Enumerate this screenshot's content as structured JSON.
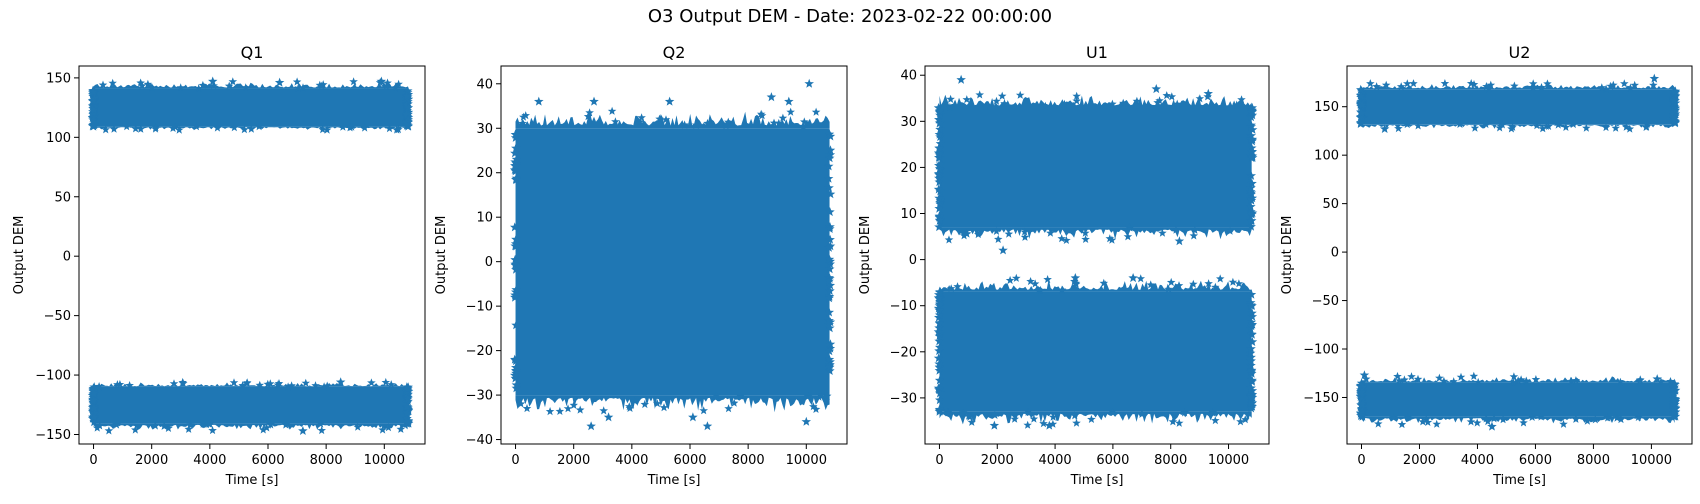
{
  "figure": {
    "title": "O3 Output DEM - Date: 2023-02-22 00:00:00"
  },
  "colors": {
    "series": "#1f77b4",
    "axis": "#000000"
  },
  "chart_data": [
    {
      "type": "scatter",
      "marker": "star",
      "title": "Q1",
      "xlabel": "Time [s]",
      "ylabel": "Output DEM",
      "xlim": [
        -500,
        11400
      ],
      "ylim": [
        -158,
        160
      ],
      "xticks": [
        0,
        2000,
        4000,
        6000,
        8000,
        10000
      ],
      "yticks": [
        -150,
        -100,
        -50,
        0,
        50,
        100,
        150
      ],
      "x_range": [
        0,
        10800
      ],
      "bands": [
        {
          "center": 125,
          "low": 109,
          "high": 141,
          "outlier_low": 106,
          "outlier_high": 147
        },
        {
          "center": -125,
          "low": -141,
          "high": -110,
          "outlier_low": -147,
          "outlier_high": -106
        }
      ],
      "outliers": [
        [
          4100,
          147
        ],
        [
          6400,
          146
        ],
        [
          9900,
          147
        ],
        [
          8500,
          -106
        ],
        [
          7200,
          -147
        ]
      ]
    },
    {
      "type": "scatter",
      "marker": "star",
      "title": "Q2",
      "xlabel": "Time [s]",
      "ylabel": "Output DEM",
      "xlim": [
        -500,
        11400
      ],
      "ylim": [
        -41,
        44
      ],
      "xticks": [
        0,
        2000,
        4000,
        6000,
        8000,
        10000
      ],
      "yticks": [
        -40,
        -30,
        -20,
        -10,
        0,
        10,
        20,
        30,
        40
      ],
      "x_range": [
        0,
        10800
      ],
      "bands": [
        {
          "center": 0,
          "low": -30,
          "high": 30,
          "outlier_low": -34,
          "outlier_high": 34
        }
      ],
      "outliers": [
        [
          10100,
          40
        ],
        [
          8800,
          37
        ],
        [
          2700,
          36
        ],
        [
          5300,
          36
        ],
        [
          6600,
          -37
        ],
        [
          2600,
          -37
        ],
        [
          3200,
          -35
        ],
        [
          10000,
          -36
        ],
        [
          6100,
          -35
        ],
        [
          9400,
          36
        ],
        [
          800,
          36
        ]
      ]
    },
    {
      "type": "scatter",
      "marker": "star",
      "title": "U1",
      "xlabel": "Time [s]",
      "ylabel": "Output DEM",
      "xlim": [
        -500,
        11400
      ],
      "ylim": [
        -40,
        42
      ],
      "xticks": [
        0,
        2000,
        4000,
        6000,
        8000,
        10000
      ],
      "yticks": [
        -30,
        -20,
        -10,
        0,
        10,
        20,
        30,
        40
      ],
      "x_range": [
        0,
        10800
      ],
      "bands": [
        {
          "center": 19.5,
          "low": 7,
          "high": 33,
          "outlier_low": 4,
          "outlier_high": 36
        },
        {
          "center": -19.5,
          "low": -33,
          "high": -7,
          "outlier_low": -36,
          "outlier_high": -4
        }
      ],
      "outliers": [
        [
          750,
          39
        ],
        [
          2200,
          2
        ],
        [
          7500,
          37
        ],
        [
          8300,
          4
        ],
        [
          9300,
          36
        ],
        [
          4700,
          -4
        ],
        [
          6700,
          -4
        ],
        [
          1900,
          -36
        ],
        [
          3800,
          -36
        ]
      ]
    },
    {
      "type": "scatter",
      "marker": "star",
      "title": "U2",
      "xlabel": "Time [s]",
      "ylabel": "Output DEM",
      "xlim": [
        -500,
        11400
      ],
      "ylim": [
        -198,
        192
      ],
      "xticks": [
        0,
        2000,
        4000,
        6000,
        8000,
        10000
      ],
      "yticks": [
        -150,
        -100,
        -50,
        0,
        50,
        100,
        150
      ],
      "x_range": [
        0,
        10800
      ],
      "bands": [
        {
          "center": 150,
          "low": 132,
          "high": 168,
          "outlier_low": 127,
          "outlier_high": 174
        },
        {
          "center": -152,
          "low": -170,
          "high": -135,
          "outlier_low": -178,
          "outlier_high": -128
        }
      ],
      "outliers": [
        [
          10100,
          179
        ],
        [
          800,
          127
        ],
        [
          4500,
          -180
        ],
        [
          100,
          -127
        ],
        [
          10200,
          -131
        ]
      ]
    }
  ]
}
